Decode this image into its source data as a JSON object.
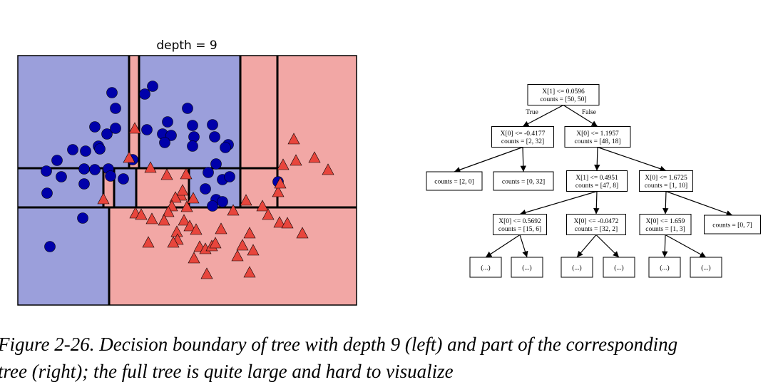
{
  "chart_data": {
    "type": "scatter",
    "title": "depth = 9",
    "xlim": [
      0,
      9.5
    ],
    "ylim": [
      0,
      7
    ],
    "series": [
      {
        "color": "#0000aa",
        "marker": "circle",
        "x": [
          2.64,
          3.56,
          3.78,
          2.74,
          4.76,
          4.2,
          2.16,
          2.5,
          2.74,
          3.62,
          4.06,
          4.3,
          4.9,
          5.46,
          4.94,
          5.52,
          5.9,
          5.82,
          4.12,
          4.9,
          1.54,
          1.9,
          2.26,
          2.3,
          1.1,
          0.8,
          1.22,
          1.86,
          2.16,
          2.96,
          3.22,
          2.54,
          2.6,
          1.86,
          0.82,
          5.56,
          5.34,
          5.74,
          5.94,
          5.26,
          5.56,
          5.46,
          5.74,
          7.3,
          1.82,
          0.9
        ],
        "values": [
          5.96,
          5.92,
          6.14,
          5.52,
          5.52,
          5.14,
          5.0,
          4.8,
          4.96,
          4.92,
          4.8,
          4.76,
          5.04,
          5.06,
          4.72,
          4.72,
          4.5,
          4.42,
          4.56,
          4.46,
          4.36,
          4.32,
          4.46,
          4.38,
          4.06,
          3.76,
          3.6,
          3.82,
          3.8,
          3.54,
          4.08,
          3.82,
          3.62,
          3.4,
          3.14,
          3.96,
          3.72,
          3.52,
          3.6,
          3.26,
          2.96,
          2.78,
          2.9,
          3.46,
          2.44,
          1.64
        ]
      },
      {
        "color": "#e8453c",
        "marker": "triangle",
        "x": [
          3.28,
          3.12,
          3.72,
          4.18,
          4.72,
          4.58,
          4.62,
          4.42,
          4.32,
          4.22,
          4.74,
          4.92,
          3.3,
          3.46,
          3.76,
          4.1,
          4.66,
          4.82,
          5.0,
          4.46,
          4.48,
          4.36,
          5.1,
          5.26,
          5.44,
          5.54,
          4.94,
          5.3,
          6.5,
          6.16,
          6.3,
          6.5,
          6.6,
          5.7,
          6.04,
          6.86,
          7.02,
          7.34,
          7.56,
          7.98,
          3.66,
          2.4,
          6.4,
          7.3,
          7.36,
          7.44,
          7.8,
          8.32,
          8.7,
          7.74
        ],
        "values": [
          4.94,
          4.12,
          3.84,
          3.64,
          3.66,
          3.06,
          3.2,
          3.0,
          2.76,
          2.6,
          2.74,
          2.98,
          2.56,
          2.52,
          2.4,
          2.36,
          2.36,
          2.2,
          2.1,
          2.04,
          1.82,
          1.74,
          1.62,
          1.56,
          1.64,
          1.72,
          1.3,
          0.86,
          0.9,
          1.36,
          1.66,
          2.0,
          1.52,
          2.12,
          2.64,
          2.76,
          2.52,
          2.3,
          2.28,
          2.0,
          1.74,
          2.96,
          2.92,
          3.16,
          3.4,
          3.92,
          4.04,
          4.12,
          3.78,
          4.64
        ]
      }
    ]
  },
  "tree": {
    "edge_labels": [
      "True",
      "False"
    ],
    "nodes": [
      {
        "lines": [
          "X[1] <= 0.0596",
          "counts = [50, 50]"
        ]
      },
      {
        "lines": [
          "X[0] <= -0.4177",
          "counts = [2, 32]"
        ]
      },
      {
        "lines": [
          "X[0] <= 1.1957",
          "counts = [48, 18]"
        ]
      },
      {
        "lines": [
          "counts = [2, 0]"
        ]
      },
      {
        "lines": [
          "counts = [0, 32]"
        ]
      },
      {
        "lines": [
          "X[1] <= 0.4951",
          "counts = [47, 8]"
        ]
      },
      {
        "lines": [
          "X[0] <= 1.6725",
          "counts = [1, 10]"
        ]
      },
      {
        "lines": [
          "X[0] <= 0.5692",
          "counts = [15, 6]"
        ]
      },
      {
        "lines": [
          "X[0] <= -0.0472",
          "counts = [32, 2]"
        ]
      },
      {
        "lines": [
          "X[0] <= 1.659",
          "counts = [1, 3]"
        ]
      },
      {
        "lines": [
          "counts = [0, 7]"
        ]
      },
      {
        "lines": [
          "(...)"
        ]
      },
      {
        "lines": [
          "(...)"
        ]
      },
      {
        "lines": [
          "(...)"
        ]
      },
      {
        "lines": [
          "(...)"
        ]
      },
      {
        "lines": [
          "(...)"
        ]
      },
      {
        "lines": [
          "(...)"
        ]
      }
    ]
  },
  "caption": {
    "lines": [
      "Figure 2-26. Decision boundary of tree with depth 9 (left) and part of the corresponding",
      "tree (right); the full tree is quite large and hard to visualize"
    ]
  }
}
